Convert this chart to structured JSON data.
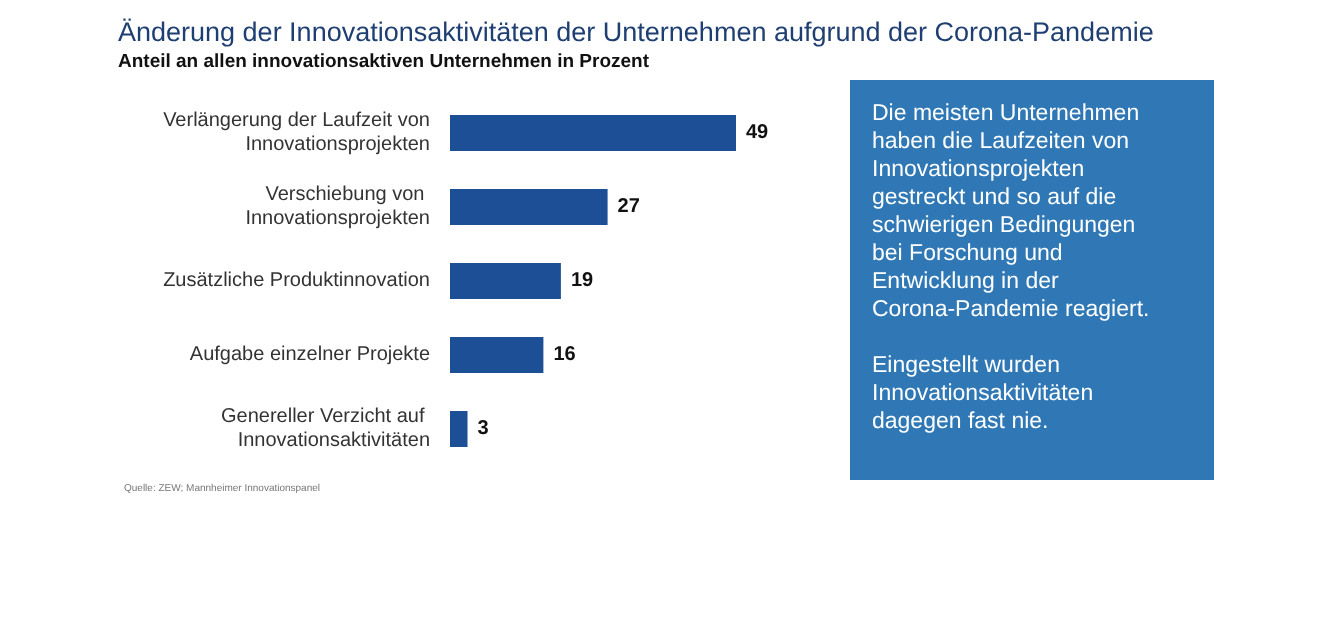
{
  "chart_data": {
    "type": "bar",
    "orientation": "horizontal",
    "title": "Änderung der Innovationsaktivitäten der Unternehmen aufgrund der Corona-Pandemie",
    "subtitle": "Anteil an allen innovationsaktiven Unternehmen in Prozent",
    "categories": [
      "Verlängerung der Laufzeit von Innovationsprojekten",
      "Verschiebung von Innovationsprojekten",
      "Zusätzliche Produktinnovation",
      "Aufgabe einzelner Projekte",
      "Genereller Verzicht auf Innovationsaktivitäten"
    ],
    "values": [
      49,
      27,
      19,
      16,
      3
    ],
    "color": "#1c4f96",
    "data_labels": true,
    "annotations": [
      "Die meisten Unternehmen haben die Laufzeiten von Innovationsprojekten gestreckt und so auf die schwierigen Bedingungen bei Forschung und Entwicklung in der Corona-Pandemie reagiert.",
      "Eingestellt wurden Innovationsaktivitäten dagegen fast nie.",
      "Quelle: ZEW; Mannheimer Innovationspanel"
    ]
  }
}
